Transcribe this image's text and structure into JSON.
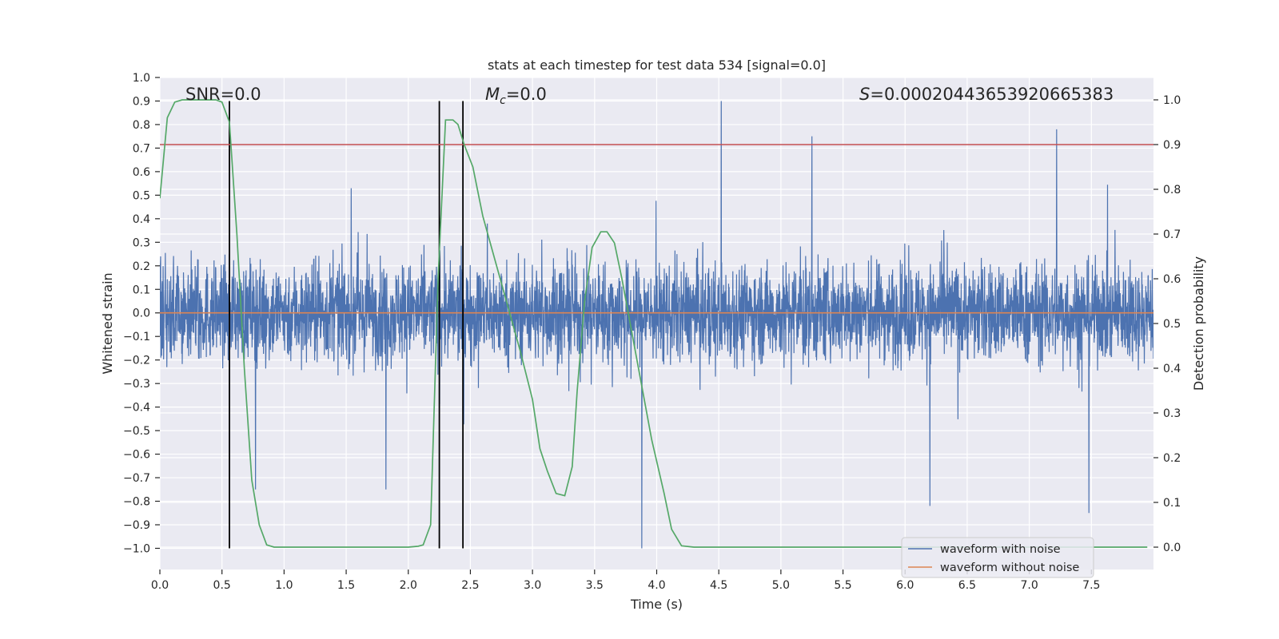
{
  "colors": {
    "background": "#ffffff",
    "plot_area": "#eaeaf2",
    "grid": "#ffffff",
    "noisy": "#4c72b0",
    "clean": "#dd8452",
    "probability": "#55a868",
    "threshold": "#c44e52",
    "marker": "#000000"
  },
  "chart_data": {
    "type": "line",
    "title": "stats at each timestep for test data 534 [signal=0.0]",
    "xlabel": "Time (s)",
    "ylabel_left": "Whitened strain",
    "ylabel_right": "Detection probability",
    "xlim": [
      0.0,
      8.0
    ],
    "ylim_left": [
      -1.09,
      1.0
    ],
    "ylim_right": [
      -0.05,
      1.05
    ],
    "x_ticks": [
      "0.0",
      "0.5",
      "1.0",
      "1.5",
      "2.0",
      "2.5",
      "3.0",
      "3.5",
      "4.0",
      "4.5",
      "5.0",
      "5.5",
      "6.0",
      "6.5",
      "7.0",
      "7.5"
    ],
    "y_left_ticks": [
      "1.0",
      "0.9",
      "0.8",
      "0.7",
      "0.6",
      "0.5",
      "0.4",
      "0.3",
      "0.2",
      "0.1",
      "0.0",
      "−0.1",
      "−0.2",
      "−0.3",
      "−0.4",
      "−0.5",
      "−0.6",
      "−0.7",
      "−0.8",
      "−0.9",
      "−1.0"
    ],
    "y_right_ticks": [
      "1.0",
      "0.9",
      "0.8",
      "0.7",
      "0.6",
      "0.5",
      "0.4",
      "0.3",
      "0.2",
      "0.1",
      "0.0"
    ],
    "annotations": {
      "snr": "SNR=0.0",
      "mc_symbol": "M",
      "mc_sub": "c",
      "mc_value": "=0.0",
      "s_symbol": "S",
      "s_value": "=0.00020443653920665383"
    },
    "legend": {
      "position": "lower right",
      "entries": [
        "waveform with noise",
        "waveform without noise"
      ]
    },
    "threshold_right": 0.9,
    "vertical_markers": [
      0.56,
      2.25,
      2.44
    ],
    "marker_range_left": [
      -1.0,
      0.9
    ],
    "noise": {
      "description": "dense whitened noise, amplitude mostly within [-0.55, 0.6]",
      "peaks": [
        {
          "x": 4.52,
          "y": 0.9
        },
        {
          "x": 5.25,
          "y": 0.75
        },
        {
          "x": 7.22,
          "y": 0.78
        },
        {
          "x": 3.88,
          "y": -1.0
        },
        {
          "x": 7.48,
          "y": -0.85
        },
        {
          "x": 6.2,
          "y": -0.82
        },
        {
          "x": 1.82,
          "y": -0.75
        },
        {
          "x": 0.77,
          "y": -0.75
        }
      ]
    },
    "clean_waveform": {
      "x": [
        0.0,
        8.0
      ],
      "y": [
        0.0,
        0.0
      ]
    },
    "probability": {
      "x": [
        0.0,
        0.06,
        0.12,
        0.18,
        0.25,
        0.3,
        0.35,
        0.4,
        0.45,
        0.5,
        0.56,
        0.62,
        0.68,
        0.74,
        0.8,
        0.86,
        0.92,
        1.0,
        1.5,
        2.0,
        2.08,
        2.12,
        2.18,
        2.24,
        2.3,
        2.36,
        2.4,
        2.45,
        2.52,
        2.6,
        2.7,
        2.8,
        2.9,
        3.0,
        3.06,
        3.12,
        3.19,
        3.26,
        3.32,
        3.36,
        3.42,
        3.48,
        3.55,
        3.6,
        3.66,
        3.72,
        3.8,
        3.88,
        3.96,
        4.06,
        4.12,
        4.2,
        4.3,
        5.0,
        6.0,
        7.0,
        7.95
      ],
      "y": [
        0.78,
        0.96,
        0.995,
        1.0,
        1.0,
        1.0,
        1.0,
        1.0,
        1.0,
        0.995,
        0.95,
        0.7,
        0.4,
        0.15,
        0.05,
        0.005,
        0.0,
        0.0,
        0.0,
        0.0,
        0.002,
        0.005,
        0.05,
        0.6,
        0.955,
        0.955,
        0.945,
        0.9,
        0.85,
        0.74,
        0.64,
        0.54,
        0.44,
        0.33,
        0.22,
        0.17,
        0.12,
        0.115,
        0.18,
        0.35,
        0.55,
        0.67,
        0.705,
        0.705,
        0.68,
        0.6,
        0.48,
        0.36,
        0.24,
        0.12,
        0.04,
        0.003,
        0.0,
        0.0,
        0.0,
        0.0,
        0.0
      ]
    }
  }
}
